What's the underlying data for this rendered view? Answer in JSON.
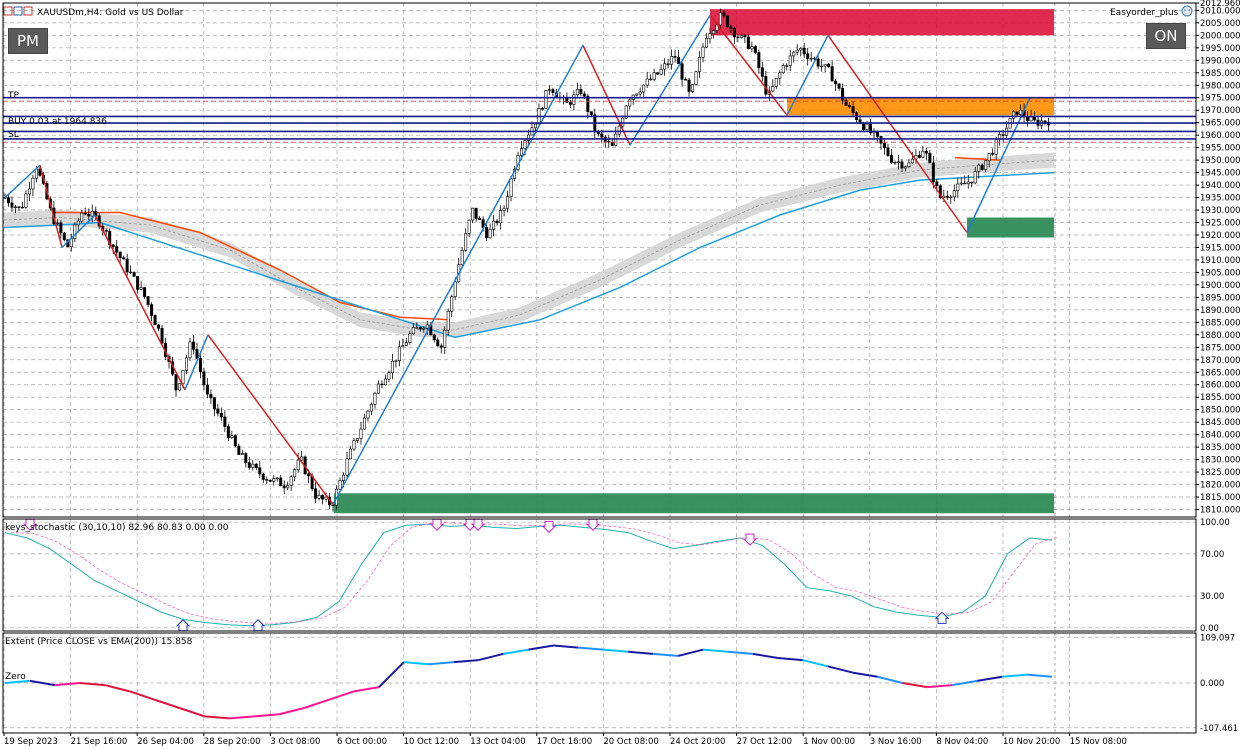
{
  "header": {
    "title": "XAUUSDm,H4: Gold vs US Dollar",
    "ea_name": "Easyorder_plus"
  },
  "buttons": {
    "pm": "PM",
    "on": "ON"
  },
  "trade_lines": {
    "tp_label": "TP",
    "buy_label": "BUY 0.03 at 1964.836",
    "sl_label": "SL",
    "tp": 1975.0,
    "entry": 1964.836,
    "sl": 1958.5,
    "line_colors": {
      "tp": "#1a1a8c",
      "entry": "#1a1a8c",
      "sl": "#1a1a8c",
      "dashed": "#d0403a"
    }
  },
  "chart_data": [
    {
      "type": "candlestick",
      "title": "XAUUSDm,H4: Gold vs US Dollar",
      "x": [
        "19 Sep 2023",
        "21 Sep 16:00",
        "26 Sep 04:00",
        "28 Sep 20:00",
        "3 Oct 08:00",
        "6 Oct 00:00",
        "10 Oct 12:00",
        "13 Oct 04:00",
        "17 Oct 16:00",
        "20 Oct 08:00",
        "24 Oct 20:00",
        "27 Oct 12:00",
        "1 Nov 00:00",
        "3 Nov 16:00",
        "8 Nov 04:00",
        "10 Nov 20:00",
        "15 Nov 08:00"
      ],
      "ylim": [
        1807.0,
        2012.96
      ],
      "yticks": [
        "2012.960",
        "2010.000",
        "2005.000",
        "2000.000",
        "1995.000",
        "1990.000",
        "1985.000",
        "1980.000",
        "1975.000",
        "1970.000",
        "1965.000",
        "1960.000",
        "1955.000",
        "1950.000",
        "1945.000",
        "1940.000",
        "1935.000",
        "1930.000",
        "1925.000",
        "1920.000",
        "1915.000",
        "1910.000",
        "1905.000",
        "1900.000",
        "1895.000",
        "1890.000",
        "1885.000",
        "1880.000",
        "1875.000",
        "1870.000",
        "1865.000",
        "1860.000",
        "1855.000",
        "1850.000",
        "1845.000",
        "1840.000",
        "1835.000",
        "1830.000",
        "1825.000",
        "1820.000",
        "1815.000",
        "1810.000"
      ],
      "price_path": [
        1935,
        1930,
        1948,
        1928,
        1915,
        1930,
        1926,
        1915,
        1905,
        1895,
        1880,
        1858,
        1878,
        1855,
        1845,
        1832,
        1826,
        1822,
        1820,
        1830,
        1815,
        1812,
        1830,
        1845,
        1860,
        1870,
        1880,
        1885,
        1875,
        1905,
        1930,
        1920,
        1930,
        1955,
        1965,
        1980,
        1972,
        1978,
        1960,
        1955,
        1975,
        1980,
        1985,
        1992,
        1975,
        2000,
        2008,
        2000,
        1995,
        1975,
        1988,
        1995,
        1990,
        1985,
        1972,
        1965,
        1958,
        1950,
        1948,
        1955,
        1935,
        1938,
        1942,
        1950,
        1960,
        1970,
        1965,
        1966
      ]
    },
    {
      "type": "line",
      "name": "keys_stochastic (30,10,10) 82.96 80.83 0.00 0.00",
      "ylim": [
        -3,
        103
      ],
      "yticks": [
        "100.00",
        "70.00",
        "30.00",
        "0.00"
      ],
      "values": [
        90,
        85,
        75,
        60,
        45,
        35,
        25,
        15,
        8,
        5,
        3,
        2,
        3,
        5,
        10,
        25,
        60,
        90,
        97,
        98,
        96,
        97,
        95,
        94,
        96,
        97,
        95,
        93,
        90,
        82,
        75,
        78,
        82,
        85,
        78,
        60,
        38,
        35,
        30,
        20,
        15,
        12,
        10,
        15,
        30,
        70,
        85,
        83
      ]
    },
    {
      "type": "line",
      "name": "Extent (Price CLOSE vs EMA(200)) 15.858",
      "ylim": [
        -120,
        120
      ],
      "yticks": [
        "109.097",
        "0.000",
        "-107.461"
      ],
      "zero_label": "Zero",
      "values": [
        0,
        5,
        -5,
        0,
        -5,
        -20,
        -40,
        -60,
        -80,
        -85,
        -80,
        -75,
        -60,
        -40,
        -20,
        -10,
        50,
        45,
        50,
        55,
        70,
        80,
        90,
        85,
        80,
        75,
        70,
        65,
        80,
        75,
        70,
        60,
        55,
        40,
        25,
        15,
        0,
        -10,
        -5,
        5,
        15,
        20,
        15
      ]
    }
  ]
}
